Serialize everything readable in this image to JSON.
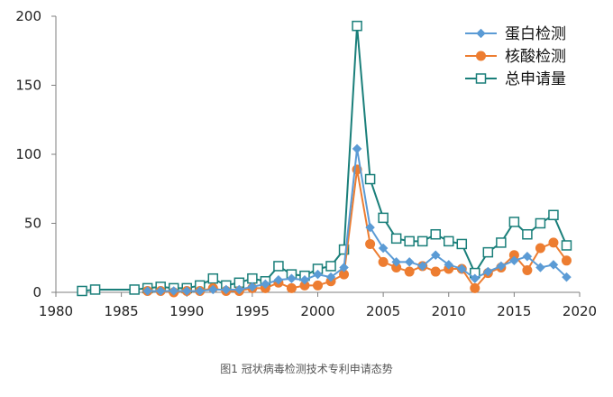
{
  "caption": "图1 冠状病毒检测技术专利申请态势",
  "chart_data": {
    "type": "line",
    "title": "",
    "xlabel": "",
    "ylabel": "",
    "xlim": [
      1980,
      2020
    ],
    "ylim": [
      0,
      200
    ],
    "x_ticks": [
      1980,
      1985,
      1990,
      1995,
      2000,
      2005,
      2010,
      2015,
      2020
    ],
    "y_ticks": [
      0,
      50,
      100,
      150,
      200
    ],
    "grid": false,
    "legend_position": "top-right",
    "series": [
      {
        "name": "蛋白检测",
        "color": "#5b9bd5",
        "marker": "diamond",
        "x": [
          1987,
          1988,
          1989,
          1990,
          1991,
          1992,
          1993,
          1994,
          1995,
          1996,
          1997,
          1998,
          1999,
          2000,
          2001,
          2002,
          2003,
          2004,
          2005,
          2006,
          2007,
          2008,
          2009,
          2010,
          2011,
          2012,
          2013,
          2014,
          2015,
          2016,
          2017,
          2018,
          2019
        ],
        "values": [
          1,
          1,
          1,
          1,
          1,
          2,
          2,
          2,
          4,
          6,
          9,
          10,
          9,
          13,
          11,
          18,
          104,
          47,
          32,
          22,
          22,
          19,
          27,
          20,
          17,
          10,
          15,
          19,
          23,
          26,
          18,
          20,
          11
        ]
      },
      {
        "name": "核酸检测",
        "color": "#ed7d31",
        "marker": "circle",
        "x": [
          1987,
          1988,
          1989,
          1990,
          1991,
          1992,
          1993,
          1994,
          1995,
          1996,
          1997,
          1998,
          1999,
          2000,
          2001,
          2002,
          2003,
          2004,
          2005,
          2006,
          2007,
          2008,
          2009,
          2010,
          2011,
          2012,
          2013,
          2014,
          2015,
          2016,
          2017,
          2018,
          2019
        ],
        "values": [
          1,
          1,
          0,
          1,
          1,
          3,
          1,
          1,
          3,
          3,
          7,
          3,
          5,
          5,
          8,
          13,
          89,
          35,
          22,
          18,
          15,
          19,
          15,
          17,
          17,
          3,
          14,
          18,
          27,
          16,
          32,
          36,
          23
        ]
      },
      {
        "name": "总申请量",
        "color": "#1a7f7a",
        "marker": "square",
        "x": [
          1982,
          1983,
          1986,
          1987,
          1988,
          1989,
          1990,
          1991,
          1992,
          1993,
          1994,
          1995,
          1996,
          1997,
          1998,
          1999,
          2000,
          2001,
          2002,
          2003,
          2004,
          2005,
          2006,
          2007,
          2008,
          2009,
          2010,
          2011,
          2012,
          2013,
          2014,
          2015,
          2016,
          2017,
          2018,
          2019
        ],
        "values": [
          1,
          2,
          2,
          3,
          4,
          3,
          3,
          5,
          10,
          5,
          7,
          10,
          8,
          19,
          13,
          12,
          17,
          19,
          31,
          193,
          82,
          54,
          39,
          37,
          37,
          42,
          37,
          35,
          14,
          29,
          36,
          51,
          42,
          50,
          56,
          34
        ]
      }
    ]
  }
}
